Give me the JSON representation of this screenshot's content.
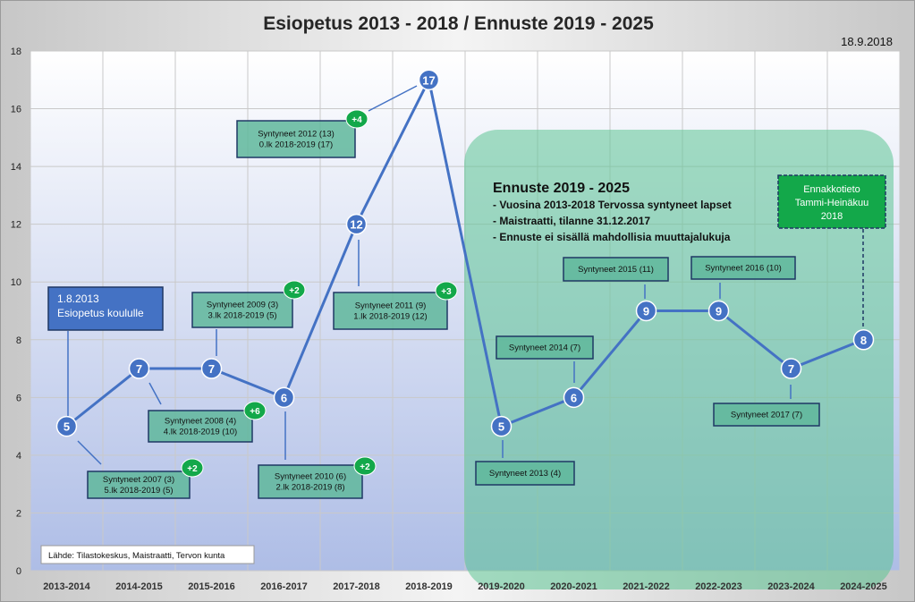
{
  "chart_data": {
    "type": "line",
    "title": "Esiopetus 2013 - 2018 / Ennuste 2019 - 2025",
    "date": "18.9.2018",
    "categories": [
      "2013-2014",
      "2014-2015",
      "2015-2016",
      "2016-2017",
      "2017-2018",
      "2018-2019",
      "2019-2020",
      "2020-2021",
      "2021-2022",
      "2022-2023",
      "2023-2024",
      "2024-2025"
    ],
    "values": [
      5,
      7,
      7,
      6,
      12,
      17,
      5,
      6,
      9,
      9,
      7,
      8
    ],
    "ylim": [
      0,
      18
    ],
    "yticks": [
      0,
      2,
      4,
      6,
      8,
      10,
      12,
      14,
      16,
      18
    ],
    "grid": true,
    "source": "Lähde: Tilastokeskus, Maistraatti, Tervon kunta",
    "start_box": [
      "1.8.2013",
      "Esiopetus koululle"
    ],
    "forecast": {
      "title": "Ennuste 2019 - 2025",
      "lines": [
        "- Vuosina 2013-2018 Tervossa syntyneet lapset",
        "- Maistraatti, tilanne 31.12.2017",
        "- Ennuste ei sisällä mahdollisia muuttajalukuja"
      ]
    },
    "advance_box": [
      "Ennakkotieto",
      "Tammi-Heinäkuu",
      "2018"
    ],
    "annotations": [
      {
        "point": 0,
        "lines": [
          "Syntyneet 2007 (3)",
          "5.lk 2018-2019 (5)"
        ],
        "badge": "+2"
      },
      {
        "point": 1,
        "lines": [
          "Syntyneet 2008 (4)",
          "4.lk 2018-2019 (10)"
        ],
        "badge": "+6"
      },
      {
        "point": 2,
        "lines": [
          "Syntyneet 2009 (3)",
          "3.lk 2018-2019 (5)"
        ],
        "badge": "+2"
      },
      {
        "point": 3,
        "lines": [
          "Syntyneet 2010 (6)",
          "2.lk 2018-2019 (8)"
        ],
        "badge": "+2"
      },
      {
        "point": 4,
        "lines": [
          "Syntyneet 2011 (9)",
          "1.lk 2018-2019 (12)"
        ],
        "badge": "+3"
      },
      {
        "point": 5,
        "lines": [
          "Syntyneet 2012 (13)",
          "0.lk 2018-2019 (17)"
        ],
        "badge": "+4"
      },
      {
        "point": 6,
        "lines": [
          "Syntyneet 2013 (4)"
        ],
        "badge": ""
      },
      {
        "point": 7,
        "lines": [
          "Syntyneet 2014 (7)"
        ],
        "badge": ""
      },
      {
        "point": 8,
        "lines": [
          "Syntyneet 2015 (11)"
        ],
        "badge": ""
      },
      {
        "point": 9,
        "lines": [
          "Syntyneet 2016 (10)"
        ],
        "badge": ""
      },
      {
        "point": 10,
        "lines": [
          "Syntyneet 2017 (7)"
        ],
        "badge": ""
      }
    ],
    "colors": {
      "line": "#4472c4",
      "marker": "#4472c4",
      "box_fill": "#5fb79b",
      "box_border": "#1f3864",
      "badge": "#13a84a",
      "forecast_fill": "#5cc493",
      "start_box": "#4472c4"
    }
  }
}
